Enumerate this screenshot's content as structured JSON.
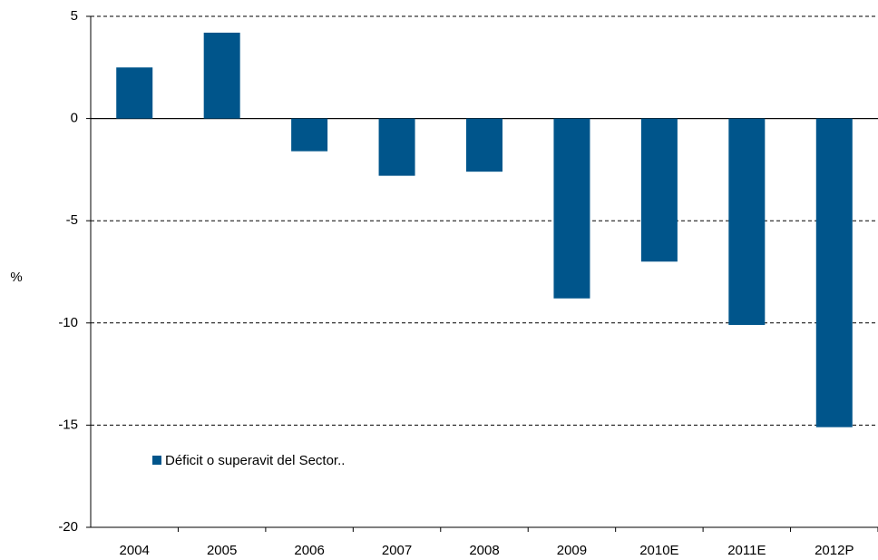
{
  "chart_data": {
    "type": "bar",
    "y_label": "%",
    "categories": [
      "2004",
      "2005",
      "2006",
      "2007",
      "2008",
      "2009",
      "2010E",
      "2011E",
      "2012P"
    ],
    "series": [
      {
        "name": "Déficit o superavit del Sector..",
        "color": "#00558b",
        "values": [
          2.5,
          4.2,
          -1.6,
          -2.8,
          -2.6,
          -8.8,
          -7.0,
          -10.1,
          -15.1
        ]
      }
    ],
    "ylim": [
      -20,
      5
    ],
    "yticks": [
      -20,
      -15,
      -10,
      -5,
      0,
      5
    ],
    "grid": true,
    "legend": "lower left"
  }
}
